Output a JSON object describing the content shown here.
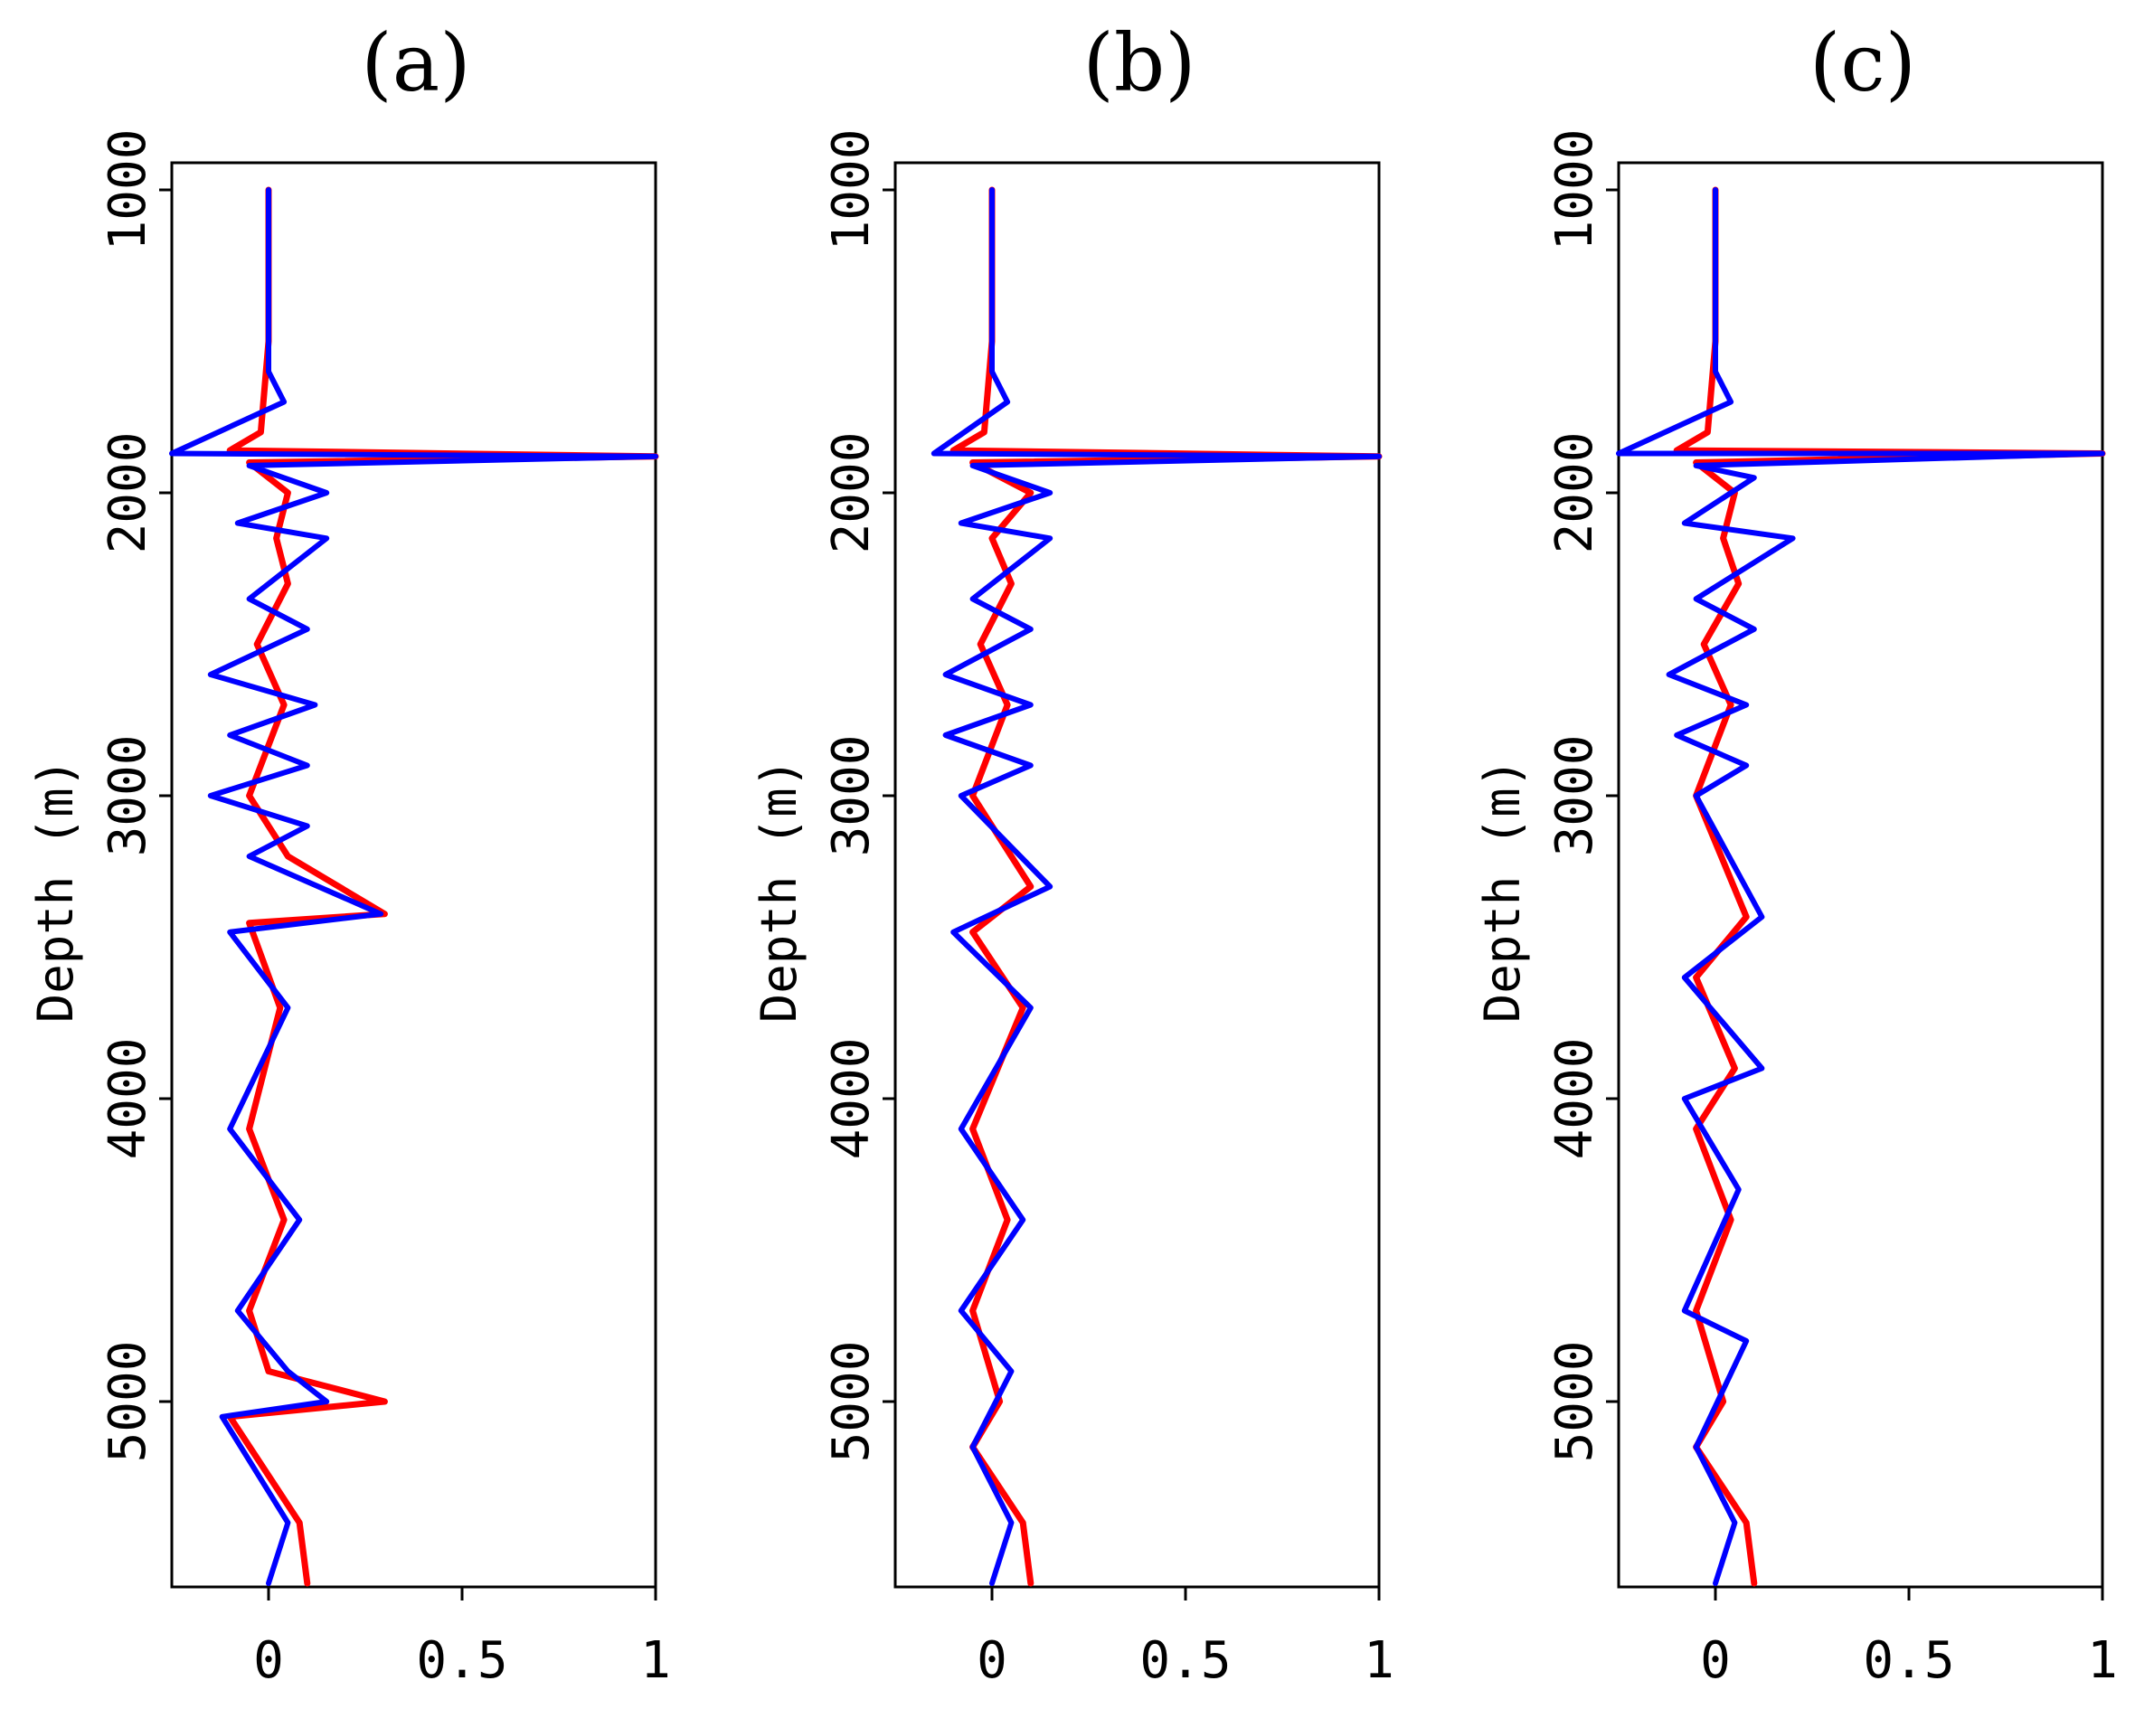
{
  "chart_data": [
    {
      "type": "line",
      "title": "(a)",
      "xlabel": "",
      "ylabel": "Depth (m)",
      "xlim": [
        -0.25,
        1.0
      ],
      "ylim": [
        1000,
        5600
      ],
      "y_inverted": true,
      "xticks": [
        0,
        0.5,
        1
      ],
      "xtick_labels": [
        "0",
        "0.5",
        "1"
      ],
      "yticks": [
        1000,
        2000,
        3000,
        4000,
        5000
      ],
      "ytick_labels": [
        "1000",
        "2000",
        "3000",
        "4000",
        "5000"
      ],
      "series": [
        {
          "name": "red",
          "color": "#ff0000",
          "points": [
            [
              0,
              1000
            ],
            [
              0,
              1500
            ],
            [
              -0.02,
              1800
            ],
            [
              -0.1,
              1860
            ],
            [
              1.0,
              1880
            ],
            [
              -0.05,
              1900
            ],
            [
              0.05,
              2000
            ],
            [
              0.02,
              2150
            ],
            [
              0.05,
              2300
            ],
            [
              -0.03,
              2500
            ],
            [
              0.04,
              2700
            ],
            [
              -0.05,
              3000
            ],
            [
              0.05,
              3200
            ],
            [
              0.3,
              3390
            ],
            [
              -0.05,
              3420
            ],
            [
              0.03,
              3700
            ],
            [
              -0.05,
              4100
            ],
            [
              0.04,
              4400
            ],
            [
              -0.05,
              4700
            ],
            [
              0.0,
              4900
            ],
            [
              0.3,
              5000
            ],
            [
              -0.1,
              5050
            ],
            [
              0.08,
              5400
            ],
            [
              0.1,
              5600
            ]
          ]
        },
        {
          "name": "blue",
          "color": "#0000ff",
          "points": [
            [
              0,
              1000
            ],
            [
              0,
              1600
            ],
            [
              0.04,
              1700
            ],
            [
              -0.25,
              1870
            ],
            [
              1.0,
              1880
            ],
            [
              -0.05,
              1910
            ],
            [
              0.15,
              2000
            ],
            [
              -0.08,
              2100
            ],
            [
              0.15,
              2150
            ],
            [
              -0.05,
              2350
            ],
            [
              0.1,
              2450
            ],
            [
              -0.15,
              2600
            ],
            [
              0.12,
              2700
            ],
            [
              -0.1,
              2800
            ],
            [
              0.1,
              2900
            ],
            [
              -0.15,
              3000
            ],
            [
              0.1,
              3100
            ],
            [
              -0.05,
              3200
            ],
            [
              0.29,
              3390
            ],
            [
              -0.1,
              3450
            ],
            [
              0.05,
              3700
            ],
            [
              -0.1,
              4100
            ],
            [
              0.08,
              4400
            ],
            [
              -0.08,
              4700
            ],
            [
              0.05,
              4900
            ],
            [
              0.15,
              5000
            ],
            [
              -0.12,
              5050
            ],
            [
              0.05,
              5400
            ],
            [
              0.0,
              5600
            ]
          ]
        }
      ]
    },
    {
      "type": "line",
      "title": "(b)",
      "xlabel": "",
      "ylabel": "Depth (m)",
      "xlim": [
        -0.25,
        1.0
      ],
      "ylim": [
        1000,
        5600
      ],
      "y_inverted": true,
      "xticks": [
        0,
        0.5,
        1
      ],
      "xtick_labels": [
        "0",
        "0.5",
        "1"
      ],
      "yticks": [
        1000,
        2000,
        3000,
        4000,
        5000
      ],
      "ytick_labels": [
        "1000",
        "2000",
        "3000",
        "4000",
        "5000"
      ],
      "series": [
        {
          "name": "red",
          "color": "#ff0000",
          "points": [
            [
              0,
              1000
            ],
            [
              0,
              1500
            ],
            [
              -0.02,
              1800
            ],
            [
              -0.1,
              1860
            ],
            [
              1.0,
              1880
            ],
            [
              -0.05,
              1900
            ],
            [
              0.1,
              2000
            ],
            [
              0.0,
              2150
            ],
            [
              0.05,
              2300
            ],
            [
              -0.03,
              2500
            ],
            [
              0.04,
              2700
            ],
            [
              -0.05,
              3000
            ],
            [
              0.1,
              3300
            ],
            [
              -0.05,
              3450
            ],
            [
              0.08,
              3700
            ],
            [
              -0.05,
              4100
            ],
            [
              0.04,
              4400
            ],
            [
              -0.05,
              4700
            ],
            [
              0.02,
              5000
            ],
            [
              -0.05,
              5150
            ],
            [
              0.08,
              5400
            ],
            [
              0.1,
              5600
            ]
          ]
        },
        {
          "name": "blue",
          "color": "#0000ff",
          "points": [
            [
              0,
              1000
            ],
            [
              0,
              1600
            ],
            [
              0.04,
              1700
            ],
            [
              -0.15,
              1870
            ],
            [
              1.0,
              1880
            ],
            [
              -0.05,
              1910
            ],
            [
              0.15,
              2000
            ],
            [
              -0.08,
              2100
            ],
            [
              0.15,
              2150
            ],
            [
              -0.05,
              2350
            ],
            [
              0.1,
              2450
            ],
            [
              -0.12,
              2600
            ],
            [
              0.1,
              2700
            ],
            [
              -0.12,
              2800
            ],
            [
              0.1,
              2900
            ],
            [
              -0.08,
              3000
            ],
            [
              0.15,
              3300
            ],
            [
              -0.1,
              3450
            ],
            [
              0.1,
              3700
            ],
            [
              -0.08,
              4100
            ],
            [
              0.08,
              4400
            ],
            [
              -0.08,
              4700
            ],
            [
              0.05,
              4900
            ],
            [
              -0.05,
              5150
            ],
            [
              0.05,
              5400
            ],
            [
              0.0,
              5600
            ]
          ]
        }
      ]
    },
    {
      "type": "line",
      "title": "(c)",
      "xlabel": "",
      "ylabel": "Depth (m)",
      "xlim": [
        -0.25,
        1.0
      ],
      "ylim": [
        1000,
        5600
      ],
      "y_inverted": true,
      "xticks": [
        0,
        0.5,
        1
      ],
      "xtick_labels": [
        "0",
        "0.5",
        "1"
      ],
      "yticks": [
        1000,
        2000,
        3000,
        4000,
        5000
      ],
      "ytick_labels": [
        "1000",
        "2000",
        "3000",
        "4000",
        "5000"
      ],
      "series": [
        {
          "name": "red",
          "color": "#ff0000",
          "points": [
            [
              0,
              1000
            ],
            [
              0,
              1500
            ],
            [
              -0.02,
              1800
            ],
            [
              -0.1,
              1860
            ],
            [
              1.0,
              1870
            ],
            [
              -0.05,
              1900
            ],
            [
              0.05,
              2000
            ],
            [
              0.02,
              2150
            ],
            [
              0.06,
              2300
            ],
            [
              -0.03,
              2500
            ],
            [
              0.04,
              2700
            ],
            [
              -0.05,
              3000
            ],
            [
              0.08,
              3400
            ],
            [
              -0.05,
              3600
            ],
            [
              0.05,
              3900
            ],
            [
              -0.05,
              4100
            ],
            [
              0.04,
              4400
            ],
            [
              -0.05,
              4700
            ],
            [
              0.02,
              5000
            ],
            [
              -0.05,
              5150
            ],
            [
              0.08,
              5400
            ],
            [
              0.1,
              5600
            ]
          ]
        },
        {
          "name": "blue",
          "color": "#0000ff",
          "points": [
            [
              0,
              1000
            ],
            [
              0,
              1600
            ],
            [
              0.04,
              1700
            ],
            [
              -0.25,
              1870
            ],
            [
              1.0,
              1870
            ],
            [
              -0.05,
              1910
            ],
            [
              0.1,
              1950
            ],
            [
              -0.08,
              2100
            ],
            [
              0.2,
              2150
            ],
            [
              -0.05,
              2350
            ],
            [
              0.1,
              2450
            ],
            [
              -0.12,
              2600
            ],
            [
              0.08,
              2700
            ],
            [
              -0.1,
              2800
            ],
            [
              0.08,
              2900
            ],
            [
              -0.05,
              3000
            ],
            [
              0.12,
              3400
            ],
            [
              -0.08,
              3600
            ],
            [
              0.12,
              3900
            ],
            [
              -0.08,
              4000
            ],
            [
              0.06,
              4300
            ],
            [
              -0.08,
              4700
            ],
            [
              0.08,
              4800
            ],
            [
              -0.05,
              5150
            ],
            [
              0.05,
              5400
            ],
            [
              0.0,
              5600
            ]
          ]
        }
      ]
    }
  ]
}
